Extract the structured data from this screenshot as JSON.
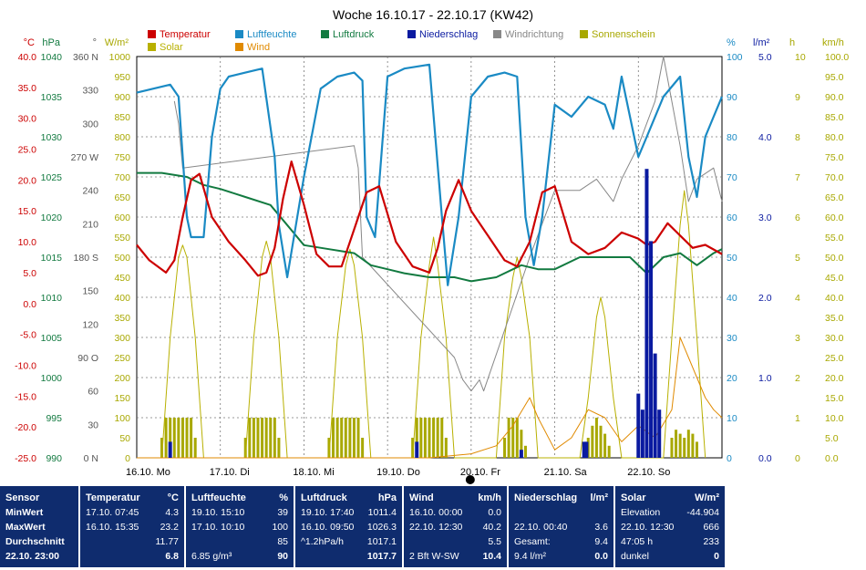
{
  "title": "Woche 16.10.17 - 22.10.17 (KW42)",
  "legend": [
    {
      "label": "Temperatur",
      "color": "#cc0000"
    },
    {
      "label": "Luftfeuchte",
      "color": "#1a8ac4"
    },
    {
      "label": "Luftdruck",
      "color": "#127a40"
    },
    {
      "label": "Niederschlag",
      "color": "#0a1aa0"
    },
    {
      "label": "Windrichtung",
      "color": "#888888"
    },
    {
      "label": "Sonnenschein",
      "color": "#a8a800"
    },
    {
      "label": "Solar",
      "color": "#b8b000"
    },
    {
      "label": "Wind",
      "color": "#e08a00"
    }
  ],
  "axes_left": [
    {
      "unit": "°C",
      "ticks": [
        "40.0",
        "35.0",
        "30.0",
        "25.0",
        "20.0",
        "15.0",
        "10.0",
        "5.0",
        "0.0",
        "-5.0",
        "-10.0",
        "-15.0",
        "-20.0",
        "-25.0"
      ],
      "color": "#cc0000"
    },
    {
      "unit": "hPa",
      "ticks": [
        "1040",
        "1035",
        "1030",
        "1025",
        "1020",
        "1015",
        "1010",
        "1005",
        "1000",
        "995",
        "990"
      ],
      "color": "#127a40"
    },
    {
      "unit": "°",
      "ticks": [
        "360 N",
        "330",
        "300",
        "270 W",
        "240",
        "210",
        "180 S",
        "150",
        "120",
        "90 O",
        "60",
        "30",
        "0 N"
      ],
      "color": "#555555"
    },
    {
      "unit": "W/m²",
      "ticks": [
        "1000",
        "950",
        "900",
        "850",
        "800",
        "750",
        "700",
        "650",
        "600",
        "550",
        "500",
        "450",
        "400",
        "350",
        "300",
        "250",
        "200",
        "150",
        "100",
        "50",
        "0"
      ],
      "color": "#a8a800"
    }
  ],
  "axes_right": [
    {
      "unit": "%",
      "ticks": [
        "100",
        "90",
        "80",
        "70",
        "60",
        "50",
        "40",
        "30",
        "20",
        "10",
        "0"
      ],
      "color": "#1a8ac4"
    },
    {
      "unit": "l/m²",
      "ticks": [
        "5.0",
        "4.0",
        "3.0",
        "2.0",
        "1.0",
        "0.0"
      ],
      "color": "#0a1aa0"
    },
    {
      "unit": "h",
      "ticks": [
        "10",
        "9",
        "8",
        "7",
        "6",
        "5",
        "4",
        "3",
        "2",
        "1",
        "0"
      ],
      "color": "#a8a800"
    },
    {
      "unit": "km/h",
      "ticks": [
        "100.0",
        "95.0",
        "90.0",
        "85.0",
        "80.0",
        "75.0",
        "70.0",
        "65.0",
        "60.0",
        "55.0",
        "50.0",
        "45.0",
        "40.0",
        "35.0",
        "30.0",
        "25.0",
        "20.0",
        "15.0",
        "10.0",
        "5.0",
        "0.0"
      ],
      "color": "#a8a800"
    }
  ],
  "x_labels": [
    "16.10.  Mo",
    "17.10.  Di",
    "18.10.  Mi",
    "19.10.  Do",
    "20.10.  Fr",
    "21.10.  Sa",
    "22.10.  So"
  ],
  "chart_data": {
    "type": "line",
    "title": "Woche 16.10.17 - 22.10.17 (KW42)",
    "categories": [
      "16.10.",
      "17.10.",
      "18.10.",
      "19.10.",
      "20.10.",
      "21.10.",
      "22.10."
    ],
    "x_unit": "days since 16.10. 00:00",
    "xlim": [
      0,
      7
    ],
    "series": [
      {
        "name": "Temperatur",
        "unit": "°C",
        "ylim": [
          -25,
          40
        ],
        "color": "#cc0000",
        "x": [
          0,
          0.15,
          0.35,
          0.45,
          0.55,
          0.65,
          0.75,
          0.9,
          1.1,
          1.3,
          1.45,
          1.55,
          1.65,
          1.75,
          1.85,
          2.0,
          2.15,
          2.3,
          2.45,
          2.6,
          2.75,
          2.9,
          3.1,
          3.3,
          3.5,
          3.6,
          3.7,
          3.85,
          4.0,
          4.2,
          4.4,
          4.55,
          4.7,
          4.85,
          5.0,
          5.2,
          5.4,
          5.6,
          5.8,
          6.0,
          6.1,
          6.2,
          6.35,
          6.5,
          6.65,
          6.8,
          7.0
        ],
        "y": [
          9.5,
          7,
          5,
          7,
          14,
          20,
          21,
          14,
          10,
          7,
          4.5,
          5,
          9,
          17,
          23,
          16,
          8,
          6,
          6,
          12,
          18,
          19,
          10,
          6,
          5,
          9,
          15,
          20,
          15,
          11,
          7,
          6,
          10,
          18,
          19,
          10,
          8,
          9,
          11.5,
          10.5,
          9.5,
          10,
          13,
          11,
          9,
          9.5,
          8
        ]
      },
      {
        "name": "Luftfeuchte",
        "unit": "%",
        "ylim": [
          0,
          100
        ],
        "color": "#1a8ac4",
        "x": [
          0,
          0.2,
          0.4,
          0.5,
          0.6,
          0.65,
          0.8,
          0.9,
          1.0,
          1.1,
          1.3,
          1.5,
          1.65,
          1.7,
          1.8,
          2.0,
          2.2,
          2.4,
          2.6,
          2.7,
          2.75,
          2.85,
          3.0,
          3.2,
          3.5,
          3.65,
          3.72,
          3.85,
          4.0,
          4.2,
          4.4,
          4.55,
          4.65,
          4.75,
          4.85,
          5.0,
          5.2,
          5.4,
          5.6,
          5.7,
          5.8,
          5.9,
          6.0,
          6.1,
          6.3,
          6.5,
          6.6,
          6.7,
          6.8,
          6.9,
          7.0
        ],
        "y": [
          91,
          92,
          93,
          90,
          60,
          55,
          55,
          80,
          92,
          95,
          96,
          97,
          75,
          58,
          45,
          70,
          92,
          95,
          96,
          94,
          60,
          55,
          95,
          97,
          98,
          60,
          43,
          60,
          90,
          95,
          96,
          95,
          60,
          48,
          60,
          88,
          85,
          90,
          88,
          82,
          95,
          85,
          75,
          80,
          90,
          95,
          75,
          65,
          80,
          85,
          90
        ]
      },
      {
        "name": "Luftdruck",
        "unit": "hPa",
        "ylim": [
          990,
          1040
        ],
        "color": "#127a40",
        "x": [
          0,
          0.3,
          0.6,
          0.8,
          1.0,
          1.3,
          1.6,
          1.8,
          2.0,
          2.3,
          2.6,
          2.8,
          3.0,
          3.2,
          3.5,
          3.8,
          4.0,
          4.3,
          4.6,
          4.8,
          5.0,
          5.3,
          5.6,
          5.9,
          6.1,
          6.3,
          6.5,
          6.7,
          6.9,
          7.0
        ],
        "y": [
          1025.5,
          1025.5,
          1025,
          1024,
          1023.5,
          1022.5,
          1021.5,
          1019,
          1016.5,
          1016,
          1015.5,
          1014,
          1013.5,
          1013,
          1012.5,
          1012.5,
          1012,
          1012.5,
          1014,
          1013.5,
          1013.5,
          1015,
          1015,
          1015,
          1013,
          1015,
          1015.5,
          1014,
          1015.5,
          1016
        ]
      },
      {
        "name": "Windrichtung",
        "unit": "°",
        "ylim": [
          0,
          360
        ],
        "color": "#888888",
        "x": [
          0.45,
          0.5,
          0.55,
          2.6,
          2.65,
          2.7,
          3.8,
          3.9,
          4.0,
          4.1,
          4.15,
          4.7,
          4.8,
          4.9,
          5.0,
          5.3,
          5.5,
          5.6,
          5.7,
          5.8,
          6.0,
          6.2,
          6.3,
          6.5,
          6.6,
          6.7,
          6.9,
          7.0
        ],
        "y": [
          320,
          300,
          260,
          280,
          260,
          180,
          90,
          70,
          60,
          70,
          60,
          180,
          200,
          220,
          240,
          240,
          250,
          240,
          230,
          250,
          280,
          320,
          360,
          280,
          230,
          250,
          260,
          230
        ]
      },
      {
        "name": "Solar",
        "unit": "W/m²",
        "ylim": [
          0,
          1000
        ],
        "color": "#b8b000",
        "x": [
          0.3,
          0.4,
          0.5,
          0.55,
          0.6,
          0.7,
          0.8,
          1.3,
          1.4,
          1.5,
          1.55,
          1.6,
          1.7,
          1.8,
          2.3,
          2.4,
          2.5,
          2.55,
          2.6,
          2.7,
          2.8,
          3.3,
          3.4,
          3.5,
          3.55,
          3.6,
          3.7,
          3.8,
          4.3,
          4.4,
          4.5,
          4.55,
          4.6,
          4.7,
          4.8,
          5.3,
          5.4,
          5.5,
          5.55,
          5.6,
          5.7,
          5.8,
          6.3,
          6.4,
          6.5,
          6.55,
          6.6,
          6.7,
          6.8
        ],
        "y": [
          0,
          300,
          500,
          530,
          500,
          300,
          0,
          0,
          300,
          500,
          540,
          500,
          300,
          0,
          0,
          300,
          480,
          520,
          480,
          300,
          0,
          0,
          300,
          480,
          550,
          480,
          300,
          0,
          0,
          300,
          450,
          500,
          450,
          300,
          0,
          0,
          150,
          350,
          400,
          350,
          150,
          0,
          0,
          300,
          580,
          666,
          580,
          300,
          0
        ]
      },
      {
        "name": "Wind",
        "unit": "km/h",
        "ylim": [
          0,
          100
        ],
        "color": "#e08a00",
        "x": [
          0,
          0.5,
          1.0,
          1.5,
          2.0,
          2.5,
          3.0,
          3.5,
          4.0,
          4.3,
          4.5,
          4.7,
          4.8,
          5.0,
          5.2,
          5.4,
          5.6,
          5.8,
          6.0,
          6.2,
          6.4,
          6.5,
          6.6,
          6.7,
          6.8,
          6.9,
          7.0
        ],
        "y": [
          0,
          0,
          0,
          0,
          0,
          0,
          0,
          0,
          1,
          3,
          8,
          15,
          10,
          2,
          5,
          12,
          10,
          4,
          8,
          5,
          12,
          30,
          25,
          20,
          15,
          12,
          10
        ]
      }
    ],
    "niederschlag": {
      "unit": "l/m²",
      "ylim": [
        0,
        5
      ],
      "x": [
        0.4,
        3.35,
        4.6,
        5.35,
        5.38,
        6.0,
        6.05,
        6.1,
        6.15,
        6.2,
        6.25
      ],
      "y": [
        0.2,
        0.2,
        0.1,
        0.2,
        0.2,
        0.8,
        0.6,
        3.6,
        2.7,
        1.3,
        0.6
      ]
    },
    "sonnenschein": {
      "unit": "h",
      "ylim": [
        0,
        10
      ],
      "x": [
        0.3,
        0.35,
        0.4,
        0.45,
        0.5,
        0.55,
        0.6,
        0.65,
        0.7,
        1.3,
        1.35,
        1.4,
        1.45,
        1.5,
        1.55,
        1.6,
        1.65,
        1.7,
        2.3,
        2.35,
        2.4,
        2.45,
        2.5,
        2.55,
        2.6,
        2.65,
        2.7,
        3.3,
        3.35,
        3.4,
        3.45,
        3.5,
        3.55,
        3.6,
        3.65,
        3.7,
        4.4,
        4.45,
        4.5,
        4.55,
        4.6,
        4.65,
        5.4,
        5.45,
        5.5,
        5.55,
        5.6,
        5.65,
        6.4,
        6.45,
        6.5,
        6.55,
        6.6,
        6.65,
        6.7
      ],
      "y": [
        0.5,
        1,
        1,
        1,
        1,
        1,
        1,
        1,
        0.5,
        0.5,
        1,
        1,
        1,
        1,
        1,
        1,
        1,
        0.5,
        0.5,
        1,
        1,
        1,
        1,
        1,
        1,
        1,
        0.5,
        0.5,
        1,
        1,
        1,
        1,
        1,
        1,
        1,
        0.5,
        0.5,
        1,
        1,
        1,
        0.7,
        0.3,
        0.5,
        0.8,
        1,
        0.8,
        0.6,
        0.3,
        0.5,
        0.7,
        0.6,
        0.5,
        0.7,
        0.6,
        0.4
      ]
    },
    "grid": true
  },
  "table": {
    "blocks": [
      {
        "rows": [
          [
            {
              "t": "Sensor",
              "b": true
            }
          ],
          [
            {
              "t": "MinWert",
              "b": true
            }
          ],
          [
            {
              "t": "MaxWert",
              "b": true
            }
          ],
          [
            {
              "t": "Durchschnitt",
              "b": true
            }
          ],
          [
            {
              "t": "22.10. 23:00",
              "b": true
            }
          ]
        ]
      },
      {
        "rows": [
          [
            {
              "t": "Temperatur",
              "b": true
            },
            {
              "t": "°C",
              "b": true,
              "r": true
            }
          ],
          [
            {
              "t": "17.10.  07:45"
            },
            {
              "t": "4.3",
              "r": true
            }
          ],
          [
            {
              "t": "16.10.  15:35"
            },
            {
              "t": "23.2",
              "r": true
            }
          ],
          [
            {
              "t": ""
            },
            {
              "t": "11.77",
              "r": true
            }
          ],
          [
            {
              "t": ""
            },
            {
              "t": "6.8",
              "r": true,
              "b": true
            }
          ]
        ]
      },
      {
        "rows": [
          [
            {
              "t": "Luftfeuchte",
              "b": true
            },
            {
              "t": "%",
              "b": true,
              "r": true
            }
          ],
          [
            {
              "t": "19.10.  15:10"
            },
            {
              "t": "39",
              "r": true
            }
          ],
          [
            {
              "t": "17.10.  10:10"
            },
            {
              "t": "100",
              "r": true
            }
          ],
          [
            {
              "t": ""
            },
            {
              "t": "85",
              "r": true
            }
          ],
          [
            {
              "t": "6.85 g/m³"
            },
            {
              "t": "90",
              "r": true,
              "b": true
            }
          ]
        ]
      },
      {
        "rows": [
          [
            {
              "t": "Luftdruck",
              "b": true
            },
            {
              "t": "hPa",
              "b": true,
              "r": true
            }
          ],
          [
            {
              "t": "19.10.  17:40"
            },
            {
              "t": "1011.4",
              "r": true
            }
          ],
          [
            {
              "t": "16.10.  09:50"
            },
            {
              "t": "1026.3",
              "r": true
            }
          ],
          [
            {
              "t": "^1.2hPa/h"
            },
            {
              "t": "1017.1",
              "r": true
            }
          ],
          [
            {
              "t": ""
            },
            {
              "t": "1017.7",
              "r": true,
              "b": true
            }
          ]
        ]
      },
      {
        "rows": [
          [
            {
              "t": "Wind",
              "b": true
            },
            {
              "t": "km/h",
              "b": true,
              "r": true
            }
          ],
          [
            {
              "t": "16.10.  00:00"
            },
            {
              "t": "0.0",
              "r": true
            }
          ],
          [
            {
              "t": "22.10.  12:30"
            },
            {
              "t": "40.2",
              "r": true
            }
          ],
          [
            {
              "t": ""
            },
            {
              "t": "5.5",
              "r": true
            }
          ],
          [
            {
              "t": "2 Bft W-SW"
            },
            {
              "t": "10.4",
              "r": true,
              "b": true
            }
          ]
        ]
      },
      {
        "rows": [
          [
            {
              "t": "Niederschlag",
              "b": true
            },
            {
              "t": "l/m²",
              "b": true,
              "r": true
            }
          ],
          [
            {
              "t": ""
            },
            {
              "t": "",
              "r": true
            }
          ],
          [
            {
              "t": "22.10.  00:40"
            },
            {
              "t": "3.6",
              "r": true
            }
          ],
          [
            {
              "t": "Gesamt:"
            },
            {
              "t": "9.4",
              "r": true
            }
          ],
          [
            {
              "t": "9.4 l/m²"
            },
            {
              "t": "0.0",
              "r": true,
              "b": true
            }
          ]
        ]
      },
      {
        "rows": [
          [
            {
              "t": "Solar",
              "b": true
            },
            {
              "t": "W/m²",
              "b": true,
              "r": true
            }
          ],
          [
            {
              "t": "Elevation"
            },
            {
              "t": "-44.904",
              "r": true
            }
          ],
          [
            {
              "t": "22.10.  12:30"
            },
            {
              "t": "666",
              "r": true
            }
          ],
          [
            {
              "t": "47:05 h"
            },
            {
              "t": "233",
              "r": true
            }
          ],
          [
            {
              "t": "dunkel"
            },
            {
              "t": "0",
              "r": true,
              "b": true
            }
          ]
        ]
      }
    ]
  }
}
